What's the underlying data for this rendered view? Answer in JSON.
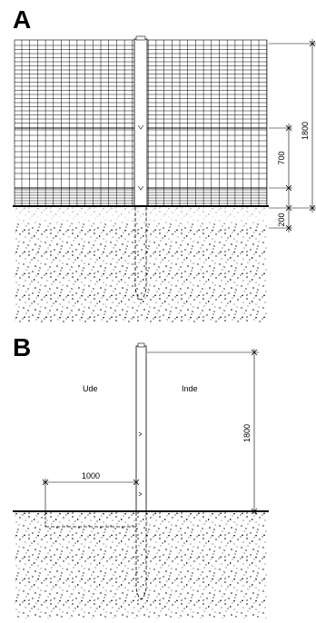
{
  "panel_a": {
    "letter": "A",
    "dims": {
      "total": "1800",
      "mid": "700",
      "below": "200"
    }
  },
  "panel_b": {
    "letter": "B",
    "outside_label": "Ude",
    "inside_label": "Inde",
    "dims": {
      "height": "1800",
      "horizontal": "1000"
    }
  }
}
